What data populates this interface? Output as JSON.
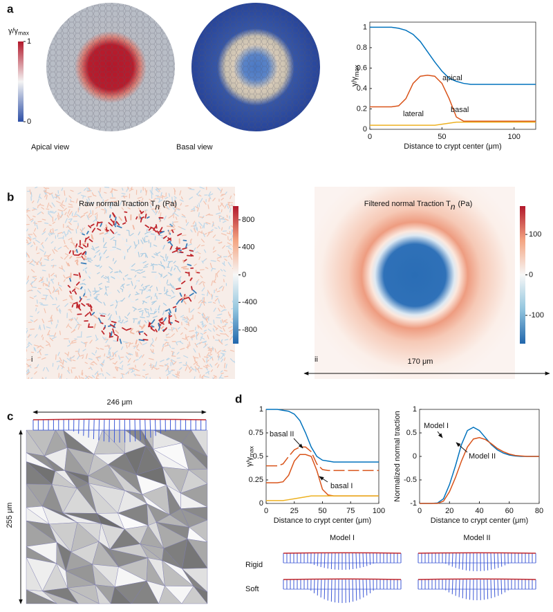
{
  "panel_labels": [
    "a",
    "b",
    "c",
    "d"
  ],
  "panel_a": {
    "colorbar": {
      "label": {
        "text": "γ/γ",
        "sub": "max"
      },
      "lim": [
        0,
        1
      ],
      "ticks": [
        1,
        0
      ]
    },
    "views": [
      "Apical view",
      "Basal view"
    ]
  },
  "panel_b": {
    "raw": {
      "title": {
        "text": "Raw normal Traction T",
        "sub": "n",
        "unit": "(Pa)"
      },
      "tag": "i",
      "colorbar": {
        "lim": [
          -1000,
          1000
        ],
        "ticks": [
          800,
          400,
          0,
          -400,
          -800
        ]
      }
    },
    "filtered": {
      "title": {
        "text": "Filtered normal Traction T",
        "sub": "n",
        "unit": "(Pa)"
      },
      "tag": "ii",
      "scale_label": "170 μm",
      "colorbar": {
        "lim": [
          -170,
          170
        ],
        "ticks": [
          100,
          0,
          -100
        ]
      }
    }
  },
  "panel_c": {
    "width_label": "246 μm",
    "height_label": "255 μm"
  },
  "panel_d": {
    "columns": [
      "Model I",
      "Model II"
    ],
    "rows": [
      "Rigid",
      "Soft"
    ]
  },
  "chart_data": [
    {
      "type": "line",
      "xlabel": "Distance to crypt center (μm)",
      "ylabel": {
        "text": "γ/γ",
        "sub": "max"
      },
      "x": [
        0,
        5,
        10,
        15,
        20,
        25,
        30,
        35,
        40,
        45,
        50,
        55,
        60,
        65,
        70,
        75,
        80,
        85,
        90,
        95,
        100,
        105,
        110,
        115
      ],
      "xlim": [
        0,
        115
      ],
      "xticks": [
        0,
        50,
        100
      ],
      "ylim": [
        0,
        1.05
      ],
      "yticks": [
        0,
        0.2,
        0.4,
        0.6,
        0.8,
        1
      ],
      "series": [
        {
          "name": "apical",
          "color": "#0072bd",
          "values": [
            1,
            1,
            1,
            1,
            0.99,
            0.97,
            0.93,
            0.86,
            0.76,
            0.66,
            0.57,
            0.5,
            0.47,
            0.45,
            0.44,
            0.44,
            0.44,
            0.44,
            0.44,
            0.44,
            0.44,
            0.44,
            0.44,
            0.44
          ]
        },
        {
          "name": "basal",
          "color": "#d95319",
          "values": [
            0.22,
            0.22,
            0.22,
            0.22,
            0.23,
            0.3,
            0.45,
            0.52,
            0.53,
            0.52,
            0.45,
            0.3,
            0.12,
            0.08,
            0.08,
            0.08,
            0.08,
            0.08,
            0.08,
            0.08,
            0.08,
            0.08,
            0.08,
            0.08
          ]
        },
        {
          "name": "lateral",
          "color": "#edb120",
          "values": [
            0.04,
            0.04,
            0.04,
            0.04,
            0.04,
            0.04,
            0.04,
            0.04,
            0.04,
            0.04,
            0.05,
            0.06,
            0.07,
            0.07,
            0.07,
            0.07,
            0.07,
            0.07,
            0.07,
            0.07,
            0.07,
            0.07,
            0.07,
            0.07
          ]
        }
      ]
    },
    {
      "type": "line",
      "xlabel": "Distance to crypt center (μm)",
      "ylabel": {
        "text": "γ/γ",
        "sub": "max"
      },
      "x": [
        0,
        5,
        10,
        15,
        20,
        25,
        30,
        35,
        40,
        45,
        50,
        55,
        60,
        65,
        70,
        75,
        80,
        85,
        90,
        95,
        100
      ],
      "xlim": [
        0,
        100
      ],
      "xticks": [
        0,
        25,
        50,
        75,
        100
      ],
      "ylim": [
        0,
        1
      ],
      "yticks": [
        0,
        0.25,
        0.5,
        0.75,
        1
      ],
      "series": [
        {
          "color": "#0072bd",
          "values": [
            1,
            1,
            1,
            0.99,
            0.98,
            0.95,
            0.88,
            0.75,
            0.6,
            0.5,
            0.46,
            0.45,
            0.44,
            0.44,
            0.44,
            0.44,
            0.44,
            0.44,
            0.44,
            0.44,
            0.44
          ]
        },
        {
          "name": "basal I",
          "color": "#d95319",
          "values": [
            0.22,
            0.22,
            0.22,
            0.23,
            0.3,
            0.45,
            0.52,
            0.52,
            0.5,
            0.35,
            0.15,
            0.09,
            0.08,
            0.08,
            0.08,
            0.08,
            0.08,
            0.08,
            0.08,
            0.08,
            0.08
          ]
        },
        {
          "name": "basal II",
          "color": "#d95319",
          "dashed": true,
          "values": [
            0.4,
            0.4,
            0.4,
            0.42,
            0.5,
            0.57,
            0.6,
            0.6,
            0.55,
            0.42,
            0.36,
            0.35,
            0.35,
            0.35,
            0.35,
            0.35,
            0.35,
            0.35,
            0.35,
            0.35,
            0.35
          ]
        },
        {
          "color": "#edb120",
          "values": [
            0.03,
            0.03,
            0.03,
            0.03,
            0.04,
            0.05,
            0.06,
            0.07,
            0.08,
            0.08,
            0.08,
            0.08,
            0.08,
            0.08,
            0.08,
            0.08,
            0.08,
            0.08,
            0.08,
            0.08,
            0.08
          ]
        }
      ]
    },
    {
      "type": "line",
      "xlabel": "Distance to crypt center (μm)",
      "ylabel": "Normalized normal traction",
      "x": [
        0,
        4,
        8,
        12,
        16,
        20,
        24,
        28,
        32,
        36,
        40,
        44,
        48,
        52,
        56,
        60,
        64,
        68,
        72,
        76,
        80
      ],
      "xlim": [
        0,
        80
      ],
      "xticks": [
        0,
        20,
        40,
        60,
        80
      ],
      "ylim": [
        -1,
        1
      ],
      "yticks": [
        -1,
        -0.5,
        0,
        0.5,
        1
      ],
      "series": [
        {
          "name": "Model I",
          "color": "#0072bd",
          "values": [
            -1,
            -1,
            -1,
            -0.99,
            -0.9,
            -0.6,
            -0.2,
            0.25,
            0.55,
            0.62,
            0.55,
            0.4,
            0.25,
            0.14,
            0.07,
            0.03,
            0.01,
            0,
            0,
            0,
            0
          ]
        },
        {
          "name": "Model II",
          "color": "#d95319",
          "values": [
            -1,
            -1,
            -1,
            -1,
            -0.95,
            -0.75,
            -0.45,
            -0.1,
            0.2,
            0.37,
            0.4,
            0.36,
            0.27,
            0.17,
            0.1,
            0.05,
            0.02,
            0.01,
            0,
            0,
            0
          ]
        }
      ]
    }
  ]
}
